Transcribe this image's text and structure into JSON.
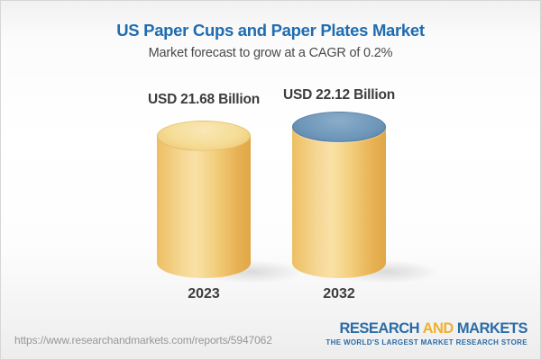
{
  "header": {
    "title": "US Paper Cups and Paper Plates Market",
    "subtitle": "Market forecast to grow at a CAGR of 0.2%"
  },
  "chart_data": {
    "type": "bar",
    "subtype": "3d-cylinder",
    "title": "US Paper Cups and Paper Plates Market",
    "subtitle": "Market forecast to grow at a CAGR of 0.2%",
    "categories": [
      "2023",
      "2032"
    ],
    "values": [
      21.68,
      22.12
    ],
    "unit": "USD Billion",
    "value_labels": [
      "USD 21.68 Billion",
      "USD 22.12 Billion"
    ],
    "cagr_percent": 0.2,
    "axes": "none",
    "grid": false,
    "legend_position": "none",
    "colors": {
      "cylinder_body": "#f3cf7d",
      "cylinder_top_2023": "#f5dc96",
      "cylinder_top_2032": "#6e97ba"
    }
  },
  "bars": [
    {
      "value_label": "USD 21.68 Billion",
      "year": "2023"
    },
    {
      "value_label": "USD 22.12 Billion",
      "year": "2032"
    }
  ],
  "footer": {
    "url": "https://www.researchandmarkets.com/reports/5947062",
    "logo": {
      "word1": "RESEARCH",
      "word2": "AND",
      "word3": "MARKETS",
      "tagline": "THE WORLD'S LARGEST MARKET RESEARCH STORE"
    }
  },
  "colors": {
    "title_blue": "#1f6cb0",
    "subtitle_gray": "#4a4a4a",
    "label_dark": "#3c3c3c",
    "url_gray": "#979797",
    "logo_blue": "#2a6ca6",
    "logo_gold": "#f0b02f"
  }
}
